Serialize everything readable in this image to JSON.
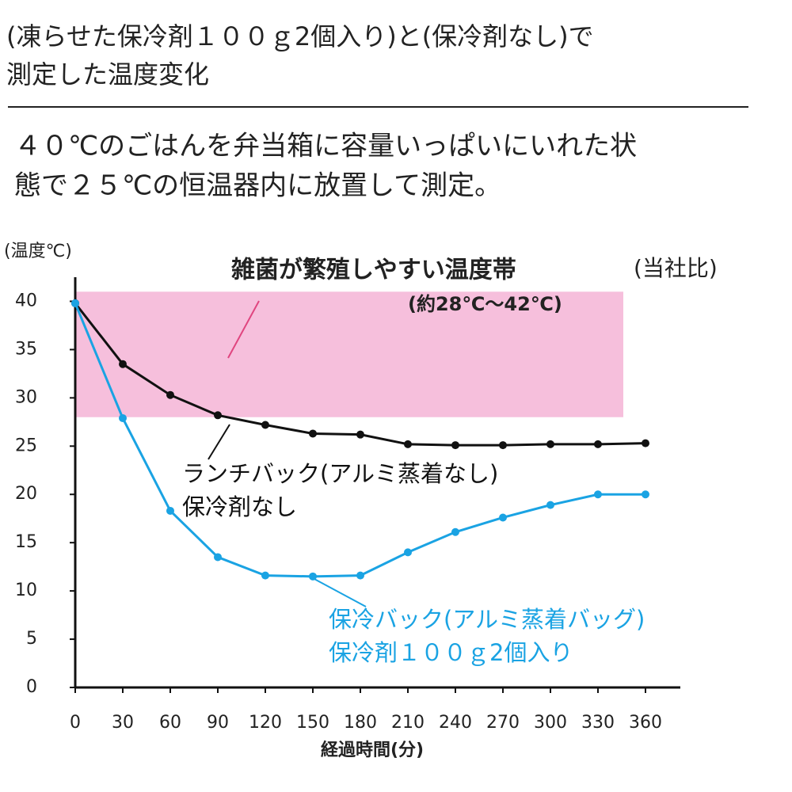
{
  "chart_data": {
    "type": "line",
    "title": [
      "(凍らせた保冷剤１００ｇ2個入り)と(保冷剤なし)で",
      "測定した温度変化"
    ],
    "subtitle": [
      "４０℃のごはんを弁当箱に容量いっぱいにいれた状",
      "態で２５℃の恒温器内に放置して測定。"
    ],
    "y_label": "(温度℃)",
    "x_label": "経過時間(分)",
    "note": "(当社比)",
    "band": {
      "label": "雑菌が繁殖しやすい温度帯",
      "range_label": "(約28℃～42℃)",
      "y": [
        28,
        41
      ],
      "x": [
        0,
        346
      ],
      "color": "#f6bfdc"
    },
    "x": [
      0,
      30,
      60,
      90,
      120,
      150,
      180,
      210,
      240,
      270,
      300,
      330,
      360
    ],
    "series": [
      {
        "name": [
          "ランチバック(アルミ蒸着なし)",
          "保冷剤なし"
        ],
        "color": "#111111",
        "values": [
          39.8,
          33.5,
          30.3,
          28.2,
          27.2,
          26.3,
          26.2,
          25.2,
          25.1,
          25.1,
          25.2,
          25.2,
          25.3
        ]
      },
      {
        "name": [
          "保冷バック(アルミ蒸着バッグ)",
          "保冷剤１００ｇ2個入り"
        ],
        "color": "#1aa3e3",
        "values": [
          39.8,
          27.9,
          18.3,
          13.5,
          11.6,
          11.5,
          11.6,
          14.0,
          16.1,
          17.6,
          18.9,
          20.0,
          20.0
        ]
      }
    ],
    "xlim": [
      0,
      382
    ],
    "ylim": [
      0,
      42.5
    ],
    "xticks": [
      0,
      30,
      60,
      90,
      120,
      150,
      180,
      210,
      240,
      270,
      300,
      330,
      360
    ],
    "yticks": [
      0,
      5,
      10,
      15,
      20,
      25,
      30,
      35,
      40
    ]
  }
}
